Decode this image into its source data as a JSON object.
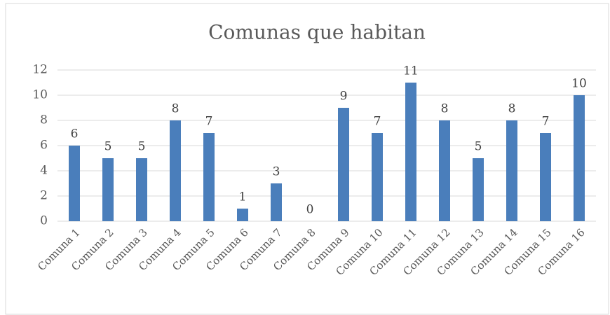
{
  "chart_data": {
    "type": "bar",
    "title": "Comunas que habitan",
    "categories": [
      "Comuna 1",
      "Comuna 2",
      "Comuna 3",
      "Comuna 4",
      "Comuna 5",
      "Comuna 6",
      "Comuna 7",
      "Comuna 8",
      "Comuna 9",
      "Comuna 10",
      "Comuna 11",
      "Comuna 12",
      "Comuna 13",
      "Comuna 14",
      "Comuna 15",
      "Comuna 16"
    ],
    "values": [
      6,
      5,
      5,
      8,
      7,
      1,
      3,
      0,
      9,
      7,
      11,
      8,
      5,
      8,
      7,
      10
    ],
    "color": "#4a7ebb",
    "ylim": [
      0,
      12
    ],
    "yticks": [
      0,
      2,
      4,
      6,
      8,
      10,
      12
    ],
    "grid": true
  }
}
